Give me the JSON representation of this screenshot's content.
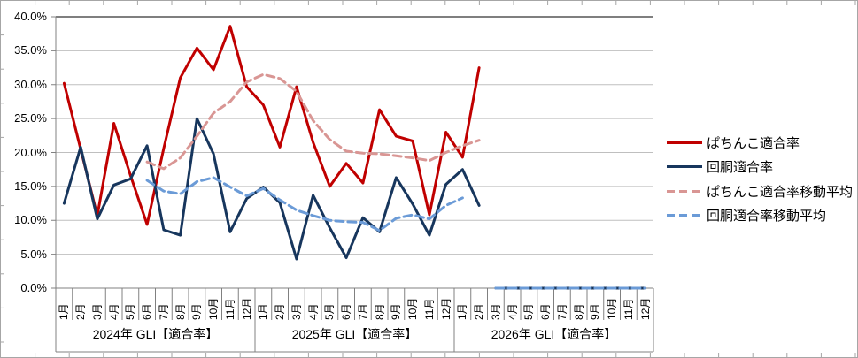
{
  "chart_data": {
    "type": "line",
    "title": "",
    "grid": true,
    "legend_position": "right",
    "x_axis": {
      "month_labels": [
        "1月",
        "2月",
        "3月",
        "4月",
        "5月",
        "6月",
        "7月",
        "8月",
        "9月",
        "10月",
        "11月",
        "12月",
        "1月",
        "2月",
        "3月",
        "4月",
        "5月",
        "6月",
        "7月",
        "8月",
        "9月",
        "10月",
        "11月",
        "12月",
        "1月",
        "2月",
        "3月",
        "4月",
        "5月",
        "6月",
        "7月",
        "8月",
        "9月",
        "10月",
        "11月",
        "12月"
      ],
      "year_groups": [
        "2024年 GLI【適合率】",
        "2025年 GLI【適合率】",
        "2026年 GLI【適合率】"
      ]
    },
    "y_axis": {
      "min": 0,
      "max": 40,
      "step": 5,
      "tick_labels": [
        "0.0%",
        "5.0%",
        "10.0%",
        "15.0%",
        "20.0%",
        "25.0%",
        "30.0%",
        "35.0%",
        "40.0%"
      ]
    },
    "series": [
      {
        "name": "ぱちんこ適合率",
        "color": "#C00000",
        "line_style": "solid",
        "width": 3,
        "values": [
          30.2,
          20.5,
          10.7,
          24.3,
          16.6,
          9.4,
          20.6,
          31.0,
          35.4,
          32.2,
          38.6,
          29.7,
          27.0,
          20.8,
          29.7,
          21.5,
          15.0,
          18.4,
          15.5,
          26.3,
          22.4,
          21.7,
          10.8,
          23.0,
          19.3,
          32.5,
          null,
          null,
          null,
          null,
          null,
          null,
          null,
          null,
          null,
          null
        ],
        "runs": [
          [
            0,
            25
          ]
        ]
      },
      {
        "name": "回胴適合率",
        "color": "#17365D",
        "line_style": "solid",
        "width": 3,
        "values": [
          12.5,
          20.8,
          10.2,
          15.2,
          16.1,
          21.0,
          8.6,
          7.8,
          25.0,
          19.8,
          8.3,
          13.2,
          14.9,
          12.6,
          4.3,
          13.7,
          8.9,
          4.5,
          10.4,
          8.3,
          16.3,
          12.4,
          7.8,
          15.3,
          17.5,
          12.2,
          0,
          0,
          0,
          0,
          0,
          0,
          0,
          0,
          0,
          0
        ],
        "runs": [
          [
            0,
            25
          ],
          [
            26,
            35
          ]
        ]
      },
      {
        "name": "ぱちんこ適合率移動平均",
        "color": "#D99694",
        "line_style": "dashed",
        "width": 3,
        "values": [
          null,
          null,
          null,
          null,
          null,
          18.6,
          17.6,
          19.2,
          22.4,
          25.8,
          27.5,
          30.4,
          31.5,
          30.9,
          29.0,
          24.7,
          21.9,
          20.2,
          19.9,
          19.8,
          19.5,
          19.2,
          18.8,
          20.0,
          21.0,
          21.8,
          null,
          null,
          null,
          null,
          null,
          null,
          null,
          null,
          null,
          null
        ],
        "runs": [
          [
            5,
            25
          ]
        ]
      },
      {
        "name": "回胴適合率移動平均",
        "color": "#6B9BD7",
        "line_style": "dashed",
        "width": 3,
        "values": [
          null,
          null,
          null,
          null,
          null,
          15.9,
          14.3,
          13.9,
          15.7,
          16.3,
          14.9,
          13.6,
          14.7,
          13.0,
          11.5,
          10.7,
          10.0,
          9.8,
          9.7,
          8.5,
          10.3,
          10.8,
          10.2,
          12.2,
          13.3,
          null,
          0,
          0,
          0,
          0,
          0,
          0,
          0,
          0,
          0,
          0
        ],
        "runs": [
          [
            5,
            24
          ],
          [
            26,
            35
          ]
        ]
      }
    ],
    "colors": {
      "gridline": "#BFBFBF",
      "axis": "#808080",
      "top_gridline": "#7F7F7F",
      "border": "#A6A6A6"
    }
  },
  "legend": {
    "items": [
      "ぱちんこ適合率",
      "回胴適合率",
      "ぱちんこ適合率移動平均",
      "回胴適合率移動平均"
    ]
  }
}
